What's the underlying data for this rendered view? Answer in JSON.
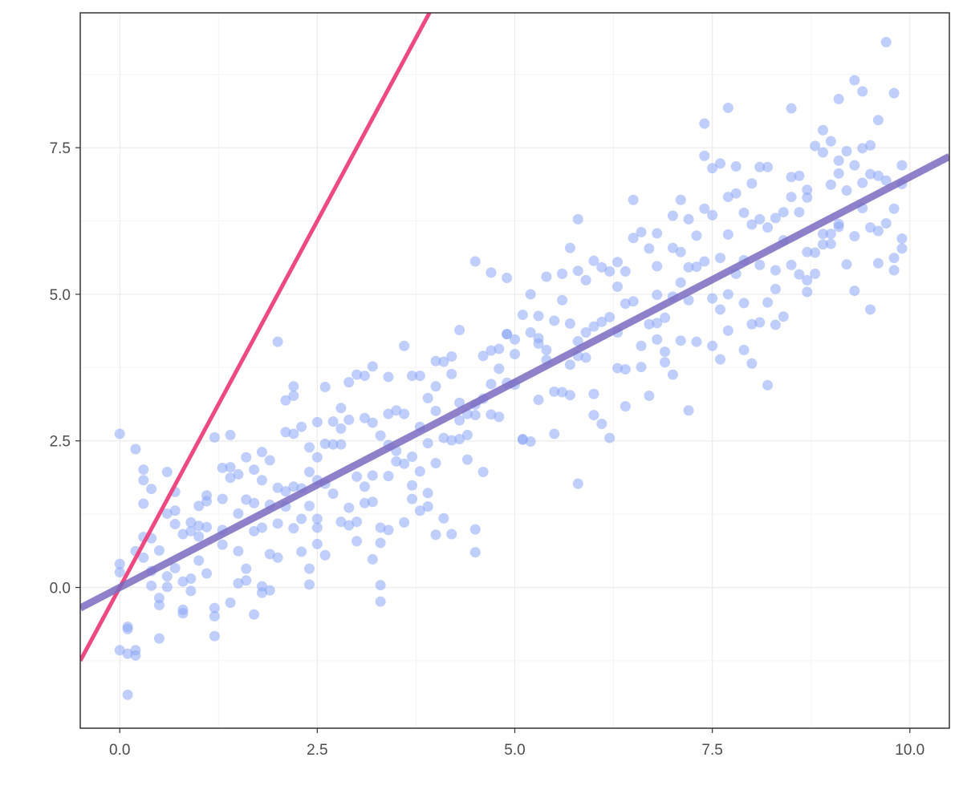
{
  "chart_data": {
    "type": "scatter",
    "title": "",
    "xlabel": "",
    "ylabel": "",
    "xlim": [
      -0.5,
      10.5
    ],
    "ylim": [
      -2.4,
      9.8
    ],
    "x_ticks": [
      0.0,
      2.5,
      5.0,
      7.5,
      10.0
    ],
    "x_tick_labels": [
      "0.0",
      "2.5",
      "5.0",
      "7.5",
      "10.0"
    ],
    "y_ticks": [
      0.0,
      2.5,
      5.0,
      7.5
    ],
    "y_tick_labels": [
      "0.0",
      "2.5",
      "5.0",
      "7.5"
    ],
    "grid": true,
    "legend": "none",
    "colors": {
      "points": "#8aa6f5",
      "line_steep": "#ee3f7a",
      "line_fit": "#7a6bbf",
      "axis": "#333333",
      "grid_major": "#ebebeb",
      "grid_minor": "#f4f4f4",
      "tick_text": "#4d4d4d"
    },
    "lines": [
      {
        "slope": 2.5,
        "intercept": 0.0,
        "color": "#ee3f7a"
      },
      {
        "slope": 0.7,
        "intercept": 0.0,
        "color": "#7a6bbf"
      }
    ],
    "points": [
      [
        0.0,
        2.62
      ],
      [
        0.0,
        0.4
      ],
      [
        0.0,
        0.26
      ],
      [
        0.0,
        -1.07
      ],
      [
        0.1,
        -1.83
      ],
      [
        0.1,
        -0.67
      ],
      [
        0.1,
        -0.71
      ],
      [
        0.1,
        -1.13
      ],
      [
        0.2,
        -1.16
      ],
      [
        0.2,
        -1.07
      ],
      [
        0.2,
        2.36
      ],
      [
        0.2,
        0.62
      ],
      [
        0.3,
        0.86
      ],
      [
        0.3,
        1.43
      ],
      [
        0.3,
        1.83
      ],
      [
        0.3,
        2.01
      ],
      [
        0.3,
        0.51
      ],
      [
        0.4,
        1.68
      ],
      [
        0.4,
        0.84
      ],
      [
        0.4,
        0.28
      ],
      [
        0.4,
        0.03
      ],
      [
        0.5,
        0.63
      ],
      [
        0.5,
        -0.18
      ],
      [
        0.5,
        -0.3
      ],
      [
        0.5,
        -0.87
      ],
      [
        0.6,
        1.97
      ],
      [
        0.6,
        1.26
      ],
      [
        0.6,
        0.19
      ],
      [
        0.6,
        0.01
      ],
      [
        0.7,
        1.63
      ],
      [
        0.7,
        1.31
      ],
      [
        0.7,
        1.08
      ],
      [
        0.7,
        0.33
      ],
      [
        0.8,
        0.91
      ],
      [
        0.8,
        0.1
      ],
      [
        0.8,
        -0.38
      ],
      [
        0.8,
        -0.44
      ],
      [
        0.9,
        1.11
      ],
      [
        0.9,
        0.96
      ],
      [
        0.9,
        0.15
      ],
      [
        0.9,
        -0.06
      ],
      [
        1.0,
        1.39
      ],
      [
        1.0,
        1.05
      ],
      [
        1.0,
        0.87
      ],
      [
        1.0,
        0.46
      ],
      [
        1.1,
        1.57
      ],
      [
        1.1,
        1.47
      ],
      [
        1.1,
        1.03
      ],
      [
        1.1,
        0.24
      ],
      [
        1.2,
        2.56
      ],
      [
        1.2,
        -0.35
      ],
      [
        1.2,
        -0.49
      ],
      [
        1.2,
        -0.83
      ],
      [
        1.3,
        2.04
      ],
      [
        1.3,
        1.51
      ],
      [
        1.3,
        0.98
      ],
      [
        1.3,
        0.73
      ],
      [
        1.4,
        2.6
      ],
      [
        1.4,
        2.05
      ],
      [
        1.4,
        1.87
      ],
      [
        1.4,
        -0.26
      ],
      [
        1.5,
        1.93
      ],
      [
        1.5,
        1.26
      ],
      [
        1.5,
        0.62
      ],
      [
        1.5,
        0.07
      ],
      [
        1.6,
        2.22
      ],
      [
        1.6,
        1.5
      ],
      [
        1.6,
        0.32
      ],
      [
        1.6,
        0.12
      ],
      [
        1.7,
        2.01
      ],
      [
        1.7,
        1.44
      ],
      [
        1.7,
        0.96
      ],
      [
        1.7,
        -0.46
      ],
      [
        1.8,
        2.31
      ],
      [
        1.8,
        1.83
      ],
      [
        1.8,
        1.02
      ],
      [
        1.8,
        0.02
      ],
      [
        1.8,
        -0.09
      ],
      [
        1.9,
        2.17
      ],
      [
        1.9,
        1.41
      ],
      [
        1.9,
        0.57
      ],
      [
        1.9,
        -0.05
      ],
      [
        2.0,
        4.19
      ],
      [
        2.0,
        1.7
      ],
      [
        2.0,
        1.09
      ],
      [
        2.0,
        0.51
      ],
      [
        2.1,
        3.19
      ],
      [
        2.1,
        2.65
      ],
      [
        2.1,
        1.64
      ],
      [
        2.1,
        1.38
      ],
      [
        2.2,
        3.43
      ],
      [
        2.2,
        3.27
      ],
      [
        2.2,
        2.62
      ],
      [
        2.2,
        1.72
      ],
      [
        2.2,
        1.01
      ],
      [
        2.3,
        2.74
      ],
      [
        2.3,
        1.69
      ],
      [
        2.3,
        1.17
      ],
      [
        2.3,
        0.61
      ],
      [
        2.4,
        2.39
      ],
      [
        2.4,
        1.97
      ],
      [
        2.4,
        1.39
      ],
      [
        2.4,
        0.32
      ],
      [
        2.4,
        0.05
      ],
      [
        2.5,
        2.82
      ],
      [
        2.5,
        2.22
      ],
      [
        2.5,
        1.83
      ],
      [
        2.5,
        1.17
      ],
      [
        2.5,
        1.02
      ],
      [
        2.5,
        0.74
      ],
      [
        2.6,
        3.42
      ],
      [
        2.6,
        2.45
      ],
      [
        2.6,
        1.77
      ],
      [
        2.6,
        0.55
      ],
      [
        2.7,
        2.83
      ],
      [
        2.7,
        2.44
      ],
      [
        2.7,
        1.6
      ],
      [
        2.8,
        3.06
      ],
      [
        2.8,
        2.71
      ],
      [
        2.8,
        2.44
      ],
      [
        2.8,
        1.12
      ],
      [
        2.9,
        3.5
      ],
      [
        2.9,
        2.86
      ],
      [
        2.9,
        1.36
      ],
      [
        2.9,
        1.06
      ],
      [
        3.0,
        3.63
      ],
      [
        3.0,
        1.89
      ],
      [
        3.0,
        1.12
      ],
      [
        3.0,
        0.79
      ],
      [
        3.1,
        3.61
      ],
      [
        3.1,
        2.89
      ],
      [
        3.1,
        1.72
      ],
      [
        3.1,
        1.44
      ],
      [
        3.2,
        3.77
      ],
      [
        3.2,
        2.81
      ],
      [
        3.2,
        1.91
      ],
      [
        3.2,
        1.46
      ],
      [
        3.2,
        0.48
      ],
      [
        3.3,
        2.59
      ],
      [
        3.3,
        1.02
      ],
      [
        3.3,
        0.76
      ],
      [
        3.3,
        0.04
      ],
      [
        3.3,
        -0.24
      ],
      [
        3.4,
        3.59
      ],
      [
        3.4,
        2.96
      ],
      [
        3.4,
        2.43
      ],
      [
        3.4,
        1.9
      ],
      [
        3.4,
        0.98
      ],
      [
        3.5,
        3.02
      ],
      [
        3.5,
        2.33
      ],
      [
        3.5,
        2.15
      ],
      [
        3.6,
        4.12
      ],
      [
        3.6,
        2.96
      ],
      [
        3.6,
        2.11
      ],
      [
        3.6,
        1.11
      ],
      [
        3.7,
        3.61
      ],
      [
        3.7,
        2.23
      ],
      [
        3.7,
        1.74
      ],
      [
        3.7,
        1.51
      ],
      [
        3.8,
        3.61
      ],
      [
        3.8,
        2.74
      ],
      [
        3.8,
        1.98
      ],
      [
        3.8,
        1.31
      ],
      [
        3.9,
        3.23
      ],
      [
        3.9,
        2.46
      ],
      [
        3.9,
        1.61
      ],
      [
        3.9,
        1.38
      ],
      [
        4.0,
        3.86
      ],
      [
        4.0,
        3.43
      ],
      [
        4.0,
        3.01
      ],
      [
        4.0,
        2.12
      ],
      [
        4.0,
        0.9
      ],
      [
        4.1,
        3.85
      ],
      [
        4.1,
        2.55
      ],
      [
        4.1,
        1.18
      ],
      [
        4.2,
        3.94
      ],
      [
        4.2,
        3.64
      ],
      [
        4.2,
        2.51
      ],
      [
        4.2,
        0.91
      ],
      [
        4.3,
        4.39
      ],
      [
        4.3,
        3.15
      ],
      [
        4.3,
        2.85
      ],
      [
        4.3,
        2.53
      ],
      [
        4.4,
        2.96
      ],
      [
        4.4,
        2.6
      ],
      [
        4.4,
        2.18
      ],
      [
        4.5,
        5.56
      ],
      [
        4.5,
        3.12
      ],
      [
        4.5,
        2.94
      ],
      [
        4.5,
        0.99
      ],
      [
        4.5,
        0.6
      ],
      [
        4.6,
        3.95
      ],
      [
        4.6,
        3.22
      ],
      [
        4.6,
        1.97
      ],
      [
        4.7,
        5.37
      ],
      [
        4.7,
        4.04
      ],
      [
        4.7,
        3.47
      ],
      [
        4.7,
        2.95
      ],
      [
        4.8,
        4.07
      ],
      [
        4.8,
        3.73
      ],
      [
        4.8,
        2.91
      ],
      [
        4.9,
        5.28
      ],
      [
        4.9,
        4.32
      ],
      [
        4.9,
        3.49
      ],
      [
        5.0,
        4.23
      ],
      [
        5.0,
        3.98
      ],
      [
        5.0,
        3.46
      ],
      [
        5.1,
        4.65
      ],
      [
        5.1,
        2.53
      ],
      [
        5.1,
        2.52
      ],
      [
        5.2,
        5.0
      ],
      [
        5.2,
        4.35
      ],
      [
        5.2,
        2.49
      ],
      [
        5.3,
        4.63
      ],
      [
        5.3,
        4.25
      ],
      [
        5.3,
        3.2
      ],
      [
        5.4,
        5.3
      ],
      [
        5.4,
        4.05
      ],
      [
        5.4,
        3.88
      ],
      [
        5.5,
        4.55
      ],
      [
        5.5,
        3.34
      ],
      [
        5.5,
        2.62
      ],
      [
        5.6,
        5.35
      ],
      [
        5.6,
        4.9
      ],
      [
        5.6,
        3.33
      ],
      [
        5.7,
        5.79
      ],
      [
        5.7,
        4.5
      ],
      [
        5.7,
        3.8
      ],
      [
        5.7,
        3.28
      ],
      [
        5.8,
        6.28
      ],
      [
        5.8,
        5.4
      ],
      [
        5.8,
        4.2
      ],
      [
        5.8,
        1.77
      ],
      [
        5.9,
        5.24
      ],
      [
        5.9,
        4.35
      ],
      [
        5.9,
        3.92
      ],
      [
        6.0,
        5.57
      ],
      [
        6.0,
        4.45
      ],
      [
        6.0,
        3.3
      ],
      [
        6.0,
        2.94
      ],
      [
        6.1,
        5.46
      ],
      [
        6.1,
        4.53
      ],
      [
        6.1,
        2.79
      ],
      [
        6.2,
        5.39
      ],
      [
        6.2,
        4.61
      ],
      [
        6.2,
        2.55
      ],
      [
        6.3,
        5.55
      ],
      [
        6.3,
        4.35
      ],
      [
        6.3,
        3.74
      ],
      [
        6.4,
        5.39
      ],
      [
        6.4,
        4.84
      ],
      [
        6.4,
        3.72
      ],
      [
        6.4,
        3.09
      ],
      [
        6.5,
        6.61
      ],
      [
        6.5,
        5.96
      ],
      [
        6.5,
        4.88
      ],
      [
        6.6,
        6.06
      ],
      [
        6.6,
        4.12
      ],
      [
        6.6,
        3.76
      ],
      [
        6.7,
        5.78
      ],
      [
        6.7,
        4.49
      ],
      [
        6.7,
        3.27
      ],
      [
        6.8,
        6.04
      ],
      [
        6.8,
        5.48
      ],
      [
        6.8,
        4.99
      ],
      [
        6.8,
        4.23
      ],
      [
        6.9,
        4.6
      ],
      [
        6.9,
        4.02
      ],
      [
        6.9,
        3.84
      ],
      [
        7.0,
        6.34
      ],
      [
        7.0,
        5.79
      ],
      [
        7.0,
        4.96
      ],
      [
        7.0,
        3.63
      ],
      [
        7.1,
        6.61
      ],
      [
        7.1,
        5.72
      ],
      [
        7.1,
        5.2
      ],
      [
        7.1,
        4.21
      ],
      [
        7.2,
        6.28
      ],
      [
        7.2,
        5.46
      ],
      [
        7.2,
        4.9
      ],
      [
        7.2,
        3.02
      ],
      [
        7.3,
        6.0
      ],
      [
        7.3,
        5.47
      ],
      [
        7.3,
        4.19
      ],
      [
        7.4,
        7.91
      ],
      [
        7.4,
        7.36
      ],
      [
        7.4,
        6.46
      ],
      [
        7.4,
        5.56
      ],
      [
        7.5,
        7.15
      ],
      [
        7.5,
        6.35
      ],
      [
        7.5,
        4.93
      ],
      [
        7.5,
        4.12
      ],
      [
        7.6,
        7.23
      ],
      [
        7.6,
        5.62
      ],
      [
        7.6,
        4.74
      ],
      [
        7.6,
        3.89
      ],
      [
        7.7,
        8.18
      ],
      [
        7.7,
        6.66
      ],
      [
        7.7,
        6.02
      ],
      [
        7.7,
        5.0
      ],
      [
        7.7,
        4.38
      ],
      [
        7.8,
        7.18
      ],
      [
        7.8,
        6.72
      ],
      [
        7.8,
        5.35
      ],
      [
        7.9,
        6.39
      ],
      [
        7.9,
        5.58
      ],
      [
        7.9,
        4.85
      ],
      [
        7.9,
        4.05
      ],
      [
        8.0,
        6.89
      ],
      [
        8.0,
        6.19
      ],
      [
        8.0,
        4.49
      ],
      [
        8.0,
        3.82
      ],
      [
        8.1,
        7.17
      ],
      [
        8.1,
        6.28
      ],
      [
        8.1,
        5.5
      ],
      [
        8.1,
        4.52
      ],
      [
        8.2,
        7.17
      ],
      [
        8.2,
        6.14
      ],
      [
        8.2,
        4.86
      ],
      [
        8.2,
        3.45
      ],
      [
        8.3,
        6.3
      ],
      [
        8.3,
        5.41
      ],
      [
        8.3,
        5.09
      ],
      [
        8.3,
        4.48
      ],
      [
        8.4,
        6.4
      ],
      [
        8.4,
        5.92
      ],
      [
        8.4,
        4.62
      ],
      [
        8.5,
        8.17
      ],
      [
        8.5,
        7.0
      ],
      [
        8.5,
        6.66
      ],
      [
        8.5,
        5.5
      ],
      [
        8.6,
        6.4
      ],
      [
        8.6,
        5.34
      ],
      [
        8.7,
        6.78
      ],
      [
        8.7,
        6.65
      ],
      [
        8.7,
        5.72
      ],
      [
        8.7,
        5.24
      ],
      [
        8.7,
        5.04
      ],
      [
        8.8,
        7.53
      ],
      [
        8.8,
        5.71
      ],
      [
        8.8,
        5.35
      ],
      [
        8.9,
        7.8
      ],
      [
        8.9,
        7.42
      ],
      [
        8.9,
        6.03
      ],
      [
        8.9,
        5.85
      ],
      [
        9.0,
        7.61
      ],
      [
        9.0,
        6.87
      ],
      [
        9.0,
        6.03
      ],
      [
        9.0,
        5.86
      ],
      [
        9.1,
        8.33
      ],
      [
        9.1,
        7.28
      ],
      [
        9.1,
        7.06
      ],
      [
        9.1,
        6.15
      ],
      [
        9.2,
        7.44
      ],
      [
        9.2,
        6.77
      ],
      [
        9.2,
        5.51
      ],
      [
        9.3,
        8.65
      ],
      [
        9.3,
        7.2
      ],
      [
        9.3,
        5.99
      ],
      [
        9.3,
        5.06
      ],
      [
        9.4,
        8.46
      ],
      [
        9.4,
        7.49
      ],
      [
        9.4,
        6.9
      ],
      [
        9.4,
        6.47
      ],
      [
        9.5,
        7.54
      ],
      [
        9.5,
        7.05
      ],
      [
        9.5,
        6.14
      ],
      [
        9.5,
        4.74
      ],
      [
        9.6,
        7.97
      ],
      [
        9.6,
        7.02
      ],
      [
        9.6,
        6.08
      ],
      [
        9.6,
        5.53
      ],
      [
        9.7,
        9.3
      ],
      [
        9.7,
        6.94
      ],
      [
        9.7,
        6.21
      ],
      [
        9.8,
        8.43
      ],
      [
        9.8,
        6.46
      ],
      [
        9.8,
        5.62
      ],
      [
        9.8,
        5.41
      ],
      [
        9.9,
        7.2
      ],
      [
        9.9,
        6.88
      ],
      [
        9.9,
        5.95
      ],
      [
        9.9,
        5.78
      ],
      [
        9.1,
        6.2
      ],
      [
        8.6,
        7.02
      ],
      [
        6.3,
        5.13
      ],
      [
        6.8,
        4.51
      ],
      [
        5.3,
        4.16
      ],
      [
        4.9,
        4.32
      ],
      [
        5.8,
        3.95
      ]
    ]
  }
}
